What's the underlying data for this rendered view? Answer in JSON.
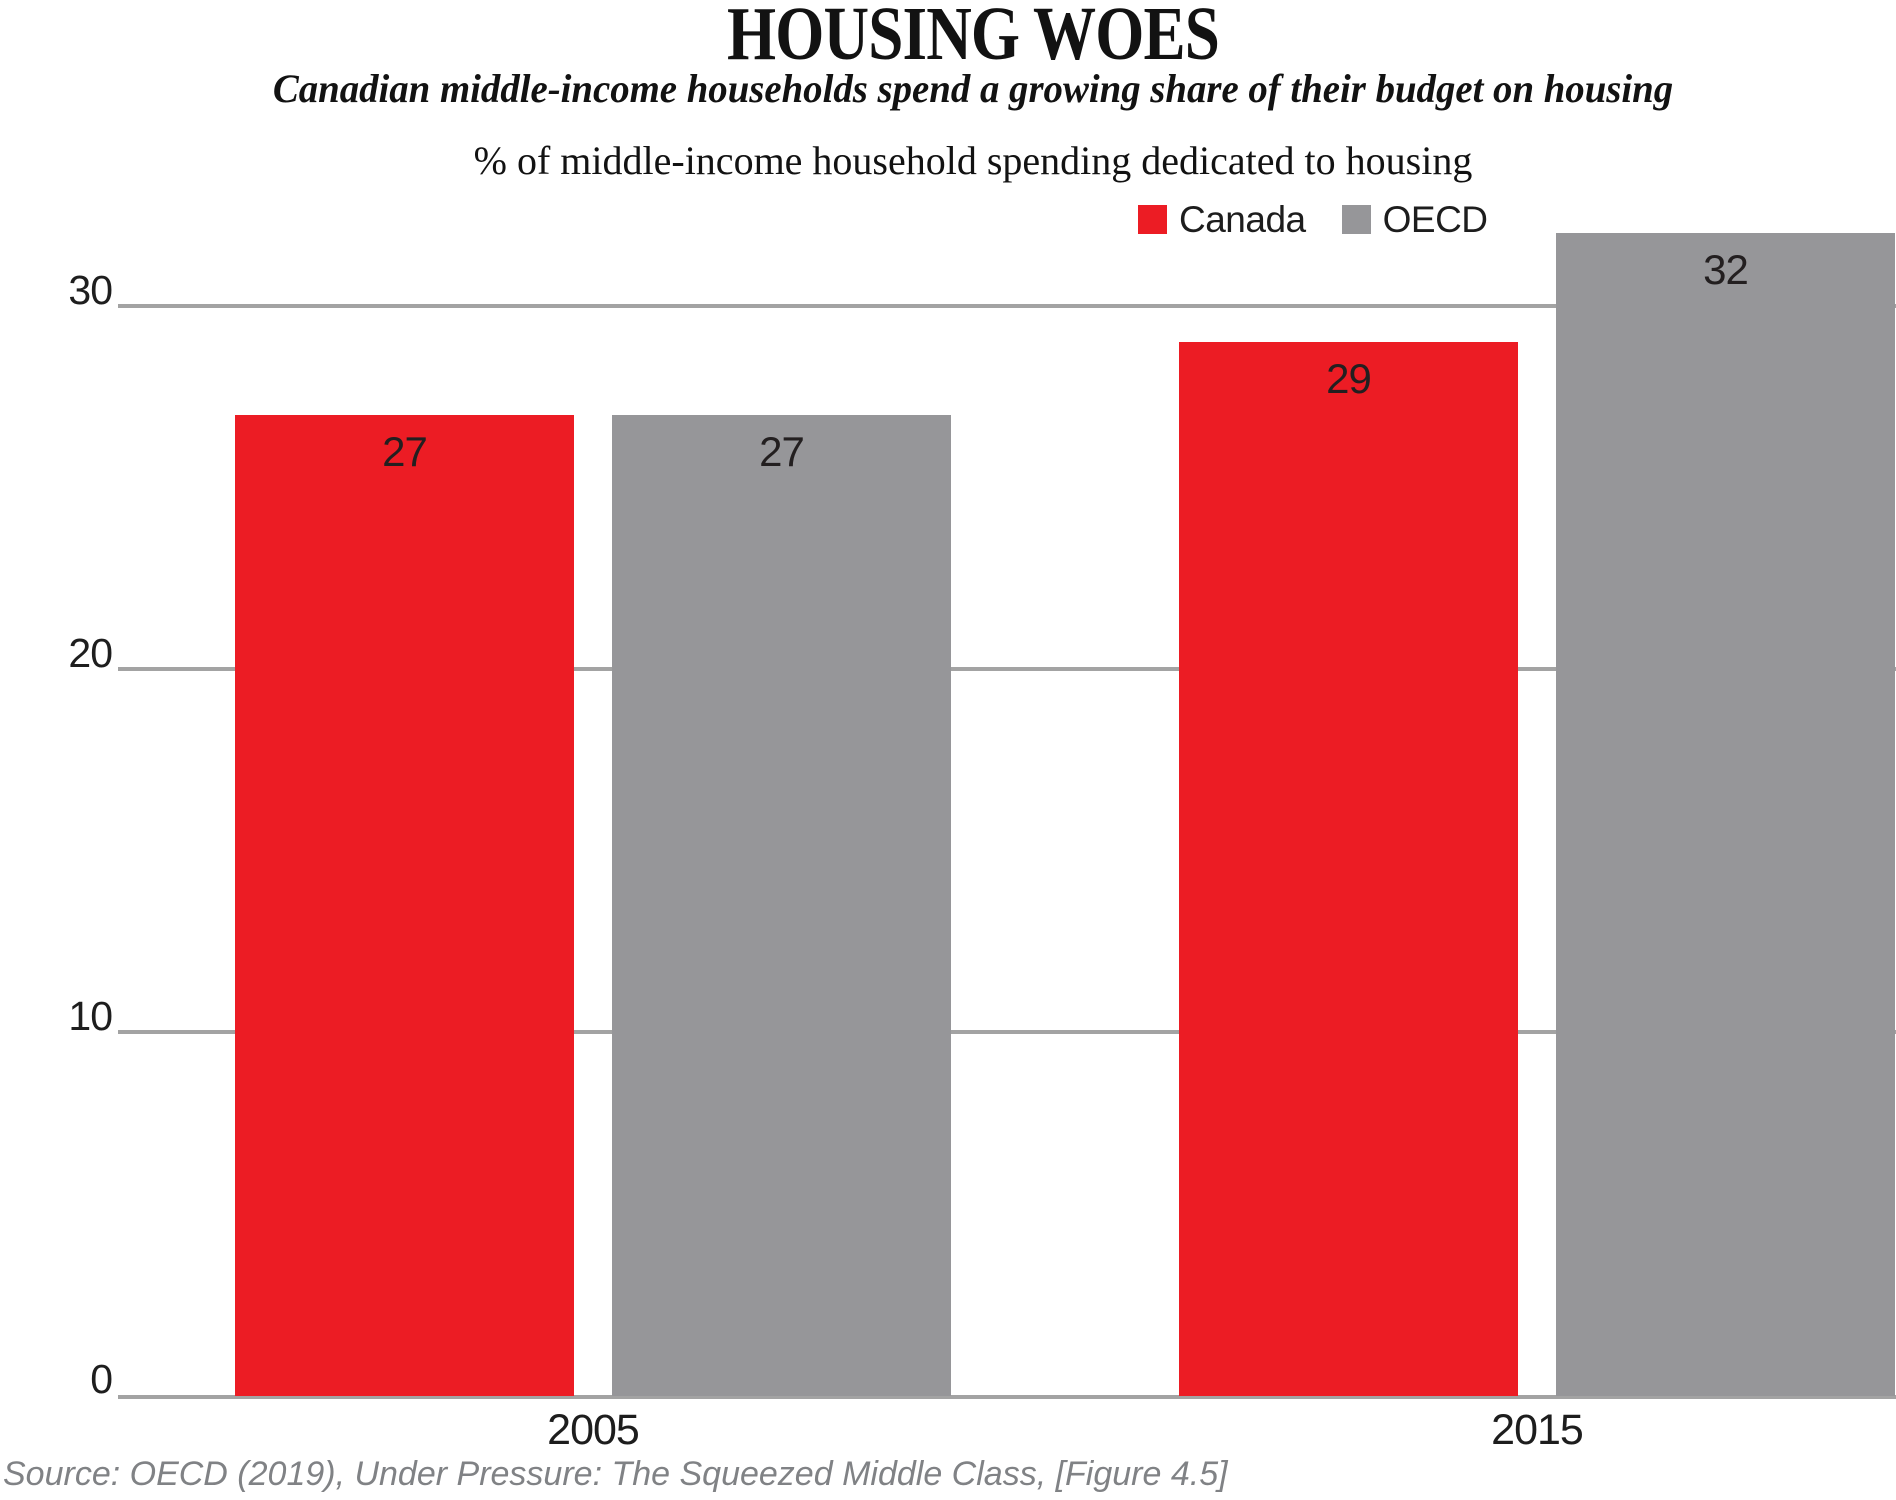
{
  "header": {
    "title": "HOUSING WOES",
    "subtitle": "Canadian middle-income households spend a growing share of their budget on housing",
    "axis_note": "% of middle-income household spending dedicated to housing"
  },
  "legend": {
    "items": [
      {
        "label": "Canada",
        "color": "#EC1C24"
      },
      {
        "label": "OECD",
        "color": "#969699"
      }
    ]
  },
  "source": "Source: OECD (2019), Under Pressure: The Squeezed Middle Class, [Figure 4.5]",
  "colors": {
    "canada_red": "#EC1C24",
    "oecd_gray": "#969699",
    "gridline_gray": "#A3A3A3",
    "tick_text": "#1E1E1E",
    "bar_label_text": "#231F20",
    "source_text": "#808285"
  },
  "chart_data": {
    "type": "bar",
    "title": "HOUSING WOES",
    "subtitle": "Canadian middle-income households spend a growing share of their budget on housing",
    "ylabel": "% of middle-income household spending dedicated to housing",
    "categories": [
      "2005",
      "2015"
    ],
    "series": [
      {
        "name": "Canada",
        "color": "#EC1C24",
        "values": [
          27,
          29
        ]
      },
      {
        "name": "OECD",
        "color": "#969699",
        "values": [
          27,
          32
        ]
      }
    ],
    "bar_labels": [
      [
        "27",
        "29"
      ],
      [
        "27",
        "32"
      ]
    ],
    "yticks": [
      0,
      10,
      20,
      30
    ],
    "ylim": [
      0,
      33
    ],
    "grid": "horizontal",
    "legend_position": "top-right",
    "value_labels_shown": true
  }
}
